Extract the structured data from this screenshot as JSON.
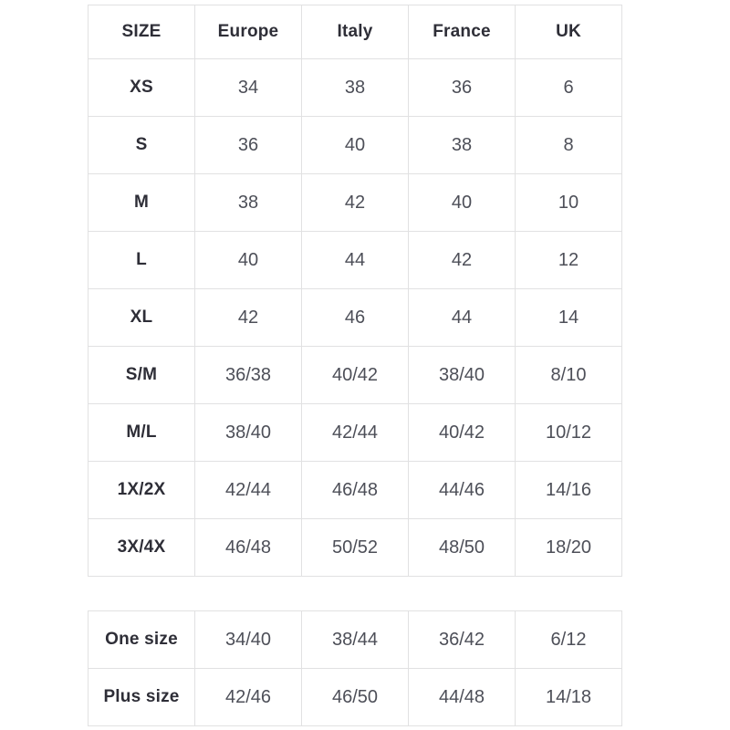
{
  "page": {
    "background": "#ffffff"
  },
  "colors": {
    "table_border": "#e1e1e2",
    "label_text": "#2e2e37",
    "value_text": "#4d4f58"
  },
  "main_table": {
    "headers": [
      "SIZE",
      "Europe",
      "Italy",
      "France",
      "UK"
    ],
    "rows": [
      {
        "label": "XS",
        "values": [
          "34",
          "38",
          "36",
          "6"
        ]
      },
      {
        "label": "S",
        "values": [
          "36",
          "40",
          "38",
          "8"
        ]
      },
      {
        "label": "M",
        "values": [
          "38",
          "42",
          "40",
          "10"
        ]
      },
      {
        "label": "L",
        "values": [
          "40",
          "44",
          "42",
          "12"
        ]
      },
      {
        "label": "XL",
        "values": [
          "42",
          "46",
          "44",
          "14"
        ]
      },
      {
        "label": "S/M",
        "values": [
          "36/38",
          "40/42",
          "38/40",
          "8/10"
        ]
      },
      {
        "label": "M/L",
        "values": [
          "38/40",
          "42/44",
          "40/42",
          "10/12"
        ]
      },
      {
        "label": "1X/2X",
        "values": [
          "42/44",
          "46/48",
          "44/46",
          "14/16"
        ]
      },
      {
        "label": "3X/4X",
        "values": [
          "46/48",
          "50/52",
          "48/50",
          "18/20"
        ]
      }
    ]
  },
  "secondary_table": {
    "rows": [
      {
        "label": "One size",
        "values": [
          "34/40",
          "38/44",
          "36/42",
          "6/12"
        ]
      },
      {
        "label": "Plus size",
        "values": [
          "42/46",
          "46/50",
          "44/48",
          "14/18"
        ]
      }
    ]
  }
}
